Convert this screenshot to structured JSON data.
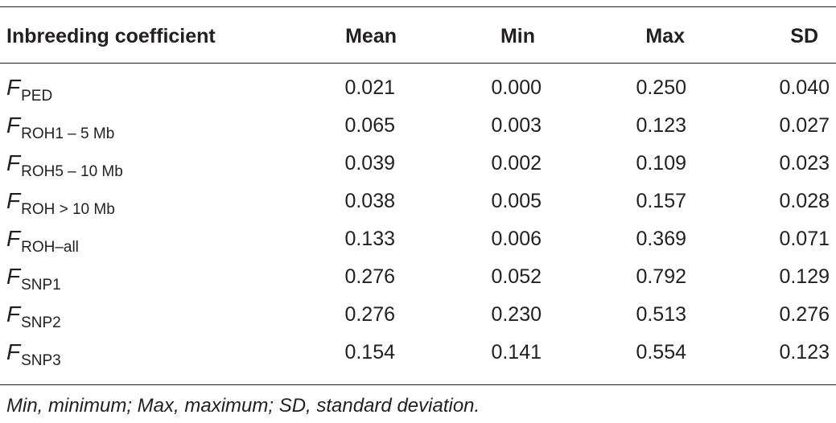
{
  "table": {
    "headers": {
      "coefficient": "Inbreeding coefficient",
      "mean": "Mean",
      "min": "Min",
      "max": "Max",
      "sd": "SD"
    },
    "rows": [
      {
        "symbol": "F",
        "subscript": "PED",
        "mean": "0.021",
        "min": "0.000",
        "max": "0.250",
        "sd": "0.040"
      },
      {
        "symbol": "F",
        "subscript": "ROH1 – 5  Mb",
        "mean": "0.065",
        "min": "0.003",
        "max": "0.123",
        "sd": "0.027"
      },
      {
        "symbol": "F",
        "subscript": "ROH5 – 10  Mb",
        "mean": "0.039",
        "min": "0.002",
        "max": "0.109",
        "sd": "0.023"
      },
      {
        "symbol": "F",
        "subscript": "ROH > 10  Mb",
        "mean": "0.038",
        "min": "0.005",
        "max": "0.157",
        "sd": "0.028"
      },
      {
        "symbol": "F",
        "subscript": "ROH–all",
        "mean": "0.133",
        "min": "0.006",
        "max": "0.369",
        "sd": "0.071"
      },
      {
        "symbol": "F",
        "subscript": "SNP1",
        "mean": "0.276",
        "min": "0.052",
        "max": "0.792",
        "sd": "0.129"
      },
      {
        "symbol": "F",
        "subscript": "SNP2",
        "mean": "0.276",
        "min": "0.230",
        "max": "0.513",
        "sd": "0.276"
      },
      {
        "symbol": "F",
        "subscript": "SNP3",
        "mean": "0.154",
        "min": "0.141",
        "max": "0.554",
        "sd": "0.123"
      }
    ],
    "footnote": "Min, minimum; Max, maximum; SD, standard deviation."
  }
}
